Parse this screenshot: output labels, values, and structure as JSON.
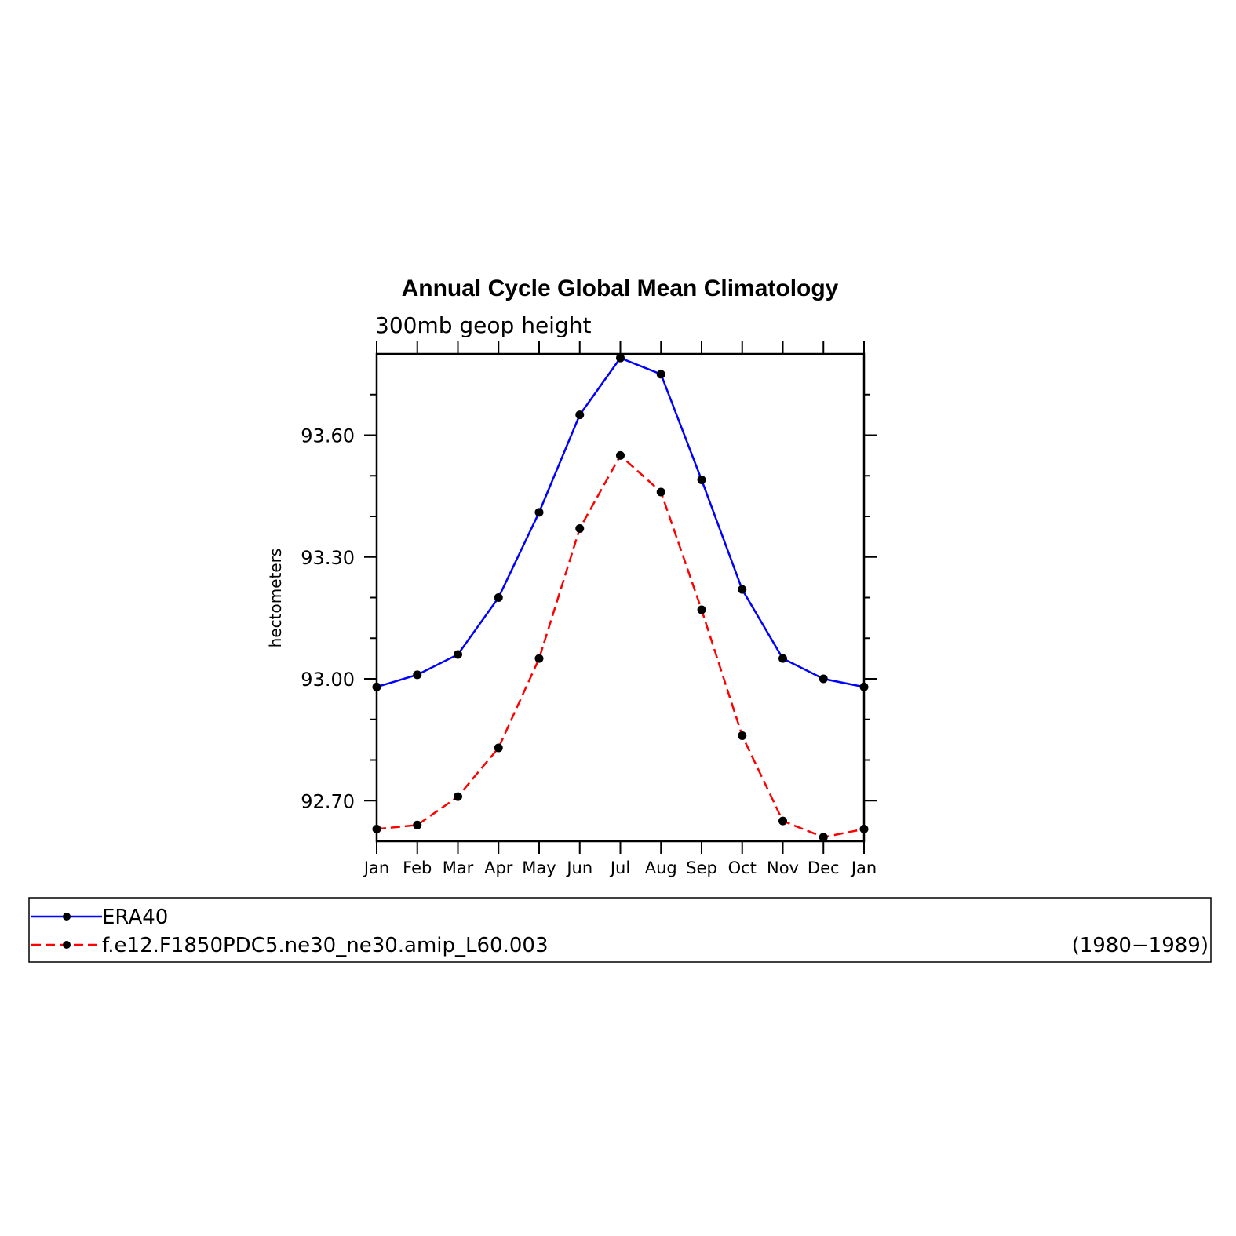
{
  "chart_data": {
    "type": "line",
    "title": "Annual Cycle Global Mean Climatology",
    "subtitle": "300mb geop height",
    "ylabel": "hectometers",
    "xlabel": "",
    "ylim": [
      92.6,
      93.8
    ],
    "y_ticks": [
      "92.70",
      "93.00",
      "93.30",
      "93.60"
    ],
    "y_tick_values": [
      92.7,
      93.0,
      93.3,
      93.6
    ],
    "categories": [
      "Jan",
      "Feb",
      "Mar",
      "Apr",
      "May",
      "Jun",
      "Jul",
      "Aug",
      "Sep",
      "Oct",
      "Nov",
      "Dec",
      "Jan"
    ],
    "grid": false,
    "legend_position": "bottom",
    "series": [
      {
        "name": "ERA40",
        "color": "#0000ff",
        "dashed": false,
        "values": [
          92.98,
          93.01,
          93.06,
          93.2,
          93.41,
          93.65,
          93.79,
          93.75,
          93.49,
          93.22,
          93.05,
          93.0,
          92.98
        ]
      },
      {
        "name": "f.e12.F1850PDC5.ne30_ne30.amip_L60.003",
        "color": "#ff0000",
        "dashed": true,
        "values": [
          92.63,
          92.64,
          92.71,
          92.83,
          93.05,
          93.37,
          93.55,
          93.46,
          93.17,
          92.86,
          92.65,
          92.61,
          92.63
        ]
      }
    ],
    "legend_note": "(1980−1989)"
  }
}
